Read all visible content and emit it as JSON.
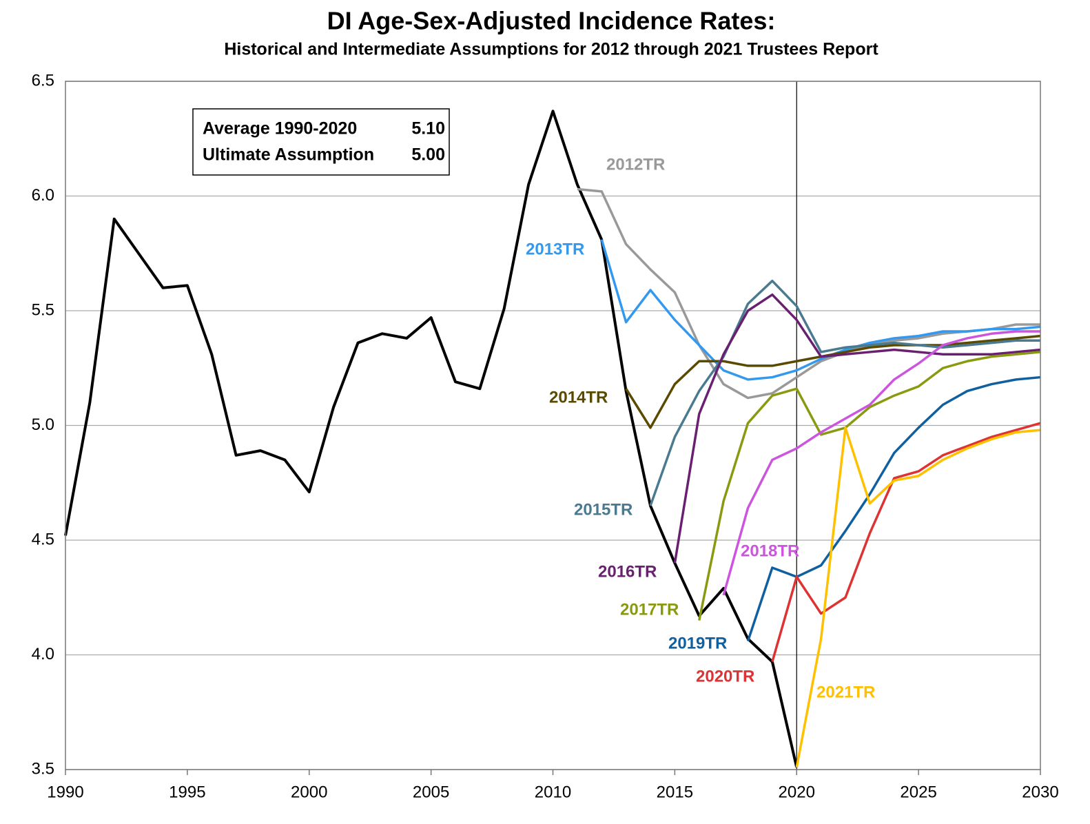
{
  "chart_data": {
    "type": "line",
    "title": "DI Age-Sex-Adjusted Incidence Rates:",
    "subtitle": "Historical and Intermediate Assumptions for 2012 through 2021 Trustees Report",
    "xlim": [
      1990,
      2030
    ],
    "xticks": [
      1990,
      1995,
      2000,
      2005,
      2010,
      2015,
      2020,
      2025,
      2030
    ],
    "ylim": [
      3.5,
      6.5
    ],
    "yticks": [
      {
        "value": 3.5,
        "label": "3.5"
      },
      {
        "value": 4.0,
        "label": "4.0"
      },
      {
        "value": 4.5,
        "label": "4.5"
      },
      {
        "value": 5.0,
        "label": "5.0"
      },
      {
        "value": 5.5,
        "label": "5.5"
      },
      {
        "value": 6.0,
        "label": "6.0"
      },
      {
        "value": 6.5,
        "label": "6.5"
      }
    ],
    "grid": true,
    "vline": 2020,
    "annotations": [
      {
        "text": "Average 1990-2020",
        "value": 5.1,
        "value_label": "5.10"
      },
      {
        "text": "Ultimate Assumption",
        "value": 5.0,
        "value_label": "5.00"
      }
    ],
    "series": [
      {
        "color": "#000000",
        "x": [
          1990,
          1991,
          1992,
          1993,
          1994,
          1995,
          1996,
          1997,
          1998,
          1999,
          2000,
          2001,
          2002,
          2003,
          2004,
          2005,
          2006,
          2007,
          2008,
          2009,
          2010,
          2011,
          2012,
          2013,
          2014,
          2015,
          2016,
          2017,
          2018,
          2019,
          2020
        ],
        "values": [
          4.52,
          5.1,
          5.9,
          5.75,
          5.6,
          5.61,
          5.31,
          4.87,
          4.89,
          4.85,
          4.71,
          5.08,
          5.36,
          5.4,
          5.38,
          5.47,
          5.19,
          5.16,
          5.51,
          6.05,
          6.37,
          6.05,
          5.81,
          5.15,
          4.65,
          4.4,
          4.17,
          4.29,
          4.07,
          3.97,
          3.51
        ]
      },
      {
        "name": "2012TR",
        "color": "#999999",
        "x": [
          2011,
          2012,
          2013,
          2014,
          2015,
          2016,
          2017,
          2018,
          2019,
          2020,
          2021,
          2022,
          2023,
          2024,
          2025,
          2026,
          2027,
          2028,
          2029,
          2030
        ],
        "values": [
          6.03,
          6.02,
          5.79,
          5.68,
          5.58,
          5.35,
          5.18,
          5.12,
          5.14,
          5.21,
          5.28,
          5.32,
          5.35,
          5.37,
          5.38,
          5.4,
          5.41,
          5.42,
          5.44,
          5.44
        ]
      },
      {
        "name": "2013TR",
        "color": "#3399ee",
        "x": [
          2012,
          2013,
          2014,
          2015,
          2016,
          2017,
          2018,
          2019,
          2020,
          2021,
          2022,
          2023,
          2024,
          2025,
          2026,
          2027,
          2028,
          2029,
          2030
        ],
        "values": [
          5.81,
          5.45,
          5.59,
          5.46,
          5.35,
          5.24,
          5.2,
          5.21,
          5.24,
          5.29,
          5.33,
          5.36,
          5.38,
          5.39,
          5.41,
          5.41,
          5.42,
          5.42,
          5.43
        ]
      },
      {
        "name": "2014TR",
        "color": "#5a4a00",
        "x": [
          2013,
          2014,
          2015,
          2016,
          2017,
          2018,
          2019,
          2020,
          2021,
          2022,
          2023,
          2024,
          2025,
          2026,
          2027,
          2028,
          2029,
          2030
        ],
        "values": [
          5.16,
          4.99,
          5.18,
          5.28,
          5.28,
          5.26,
          5.26,
          5.28,
          5.3,
          5.32,
          5.34,
          5.35,
          5.35,
          5.35,
          5.36,
          5.37,
          5.38,
          5.39
        ]
      },
      {
        "name": "2015TR",
        "color": "#4a7a90",
        "x": [
          2014,
          2015,
          2016,
          2017,
          2018,
          2019,
          2020,
          2021,
          2022,
          2023,
          2024,
          2025,
          2026,
          2027,
          2028,
          2029,
          2030
        ],
        "values": [
          4.65,
          4.95,
          5.15,
          5.3,
          5.53,
          5.63,
          5.52,
          5.32,
          5.34,
          5.35,
          5.36,
          5.35,
          5.34,
          5.35,
          5.36,
          5.37,
          5.37
        ]
      },
      {
        "name": "2016TR",
        "color": "#6a2070",
        "x": [
          2015,
          2016,
          2017,
          2018,
          2019,
          2020,
          2021,
          2022,
          2023,
          2024,
          2025,
          2026,
          2027,
          2028,
          2029,
          2030
        ],
        "values": [
          4.4,
          5.05,
          5.31,
          5.5,
          5.57,
          5.46,
          5.3,
          5.31,
          5.32,
          5.33,
          5.32,
          5.31,
          5.31,
          5.31,
          5.32,
          5.33
        ]
      },
      {
        "name": "2017TR",
        "color": "#8a9a10",
        "x": [
          2016,
          2017,
          2018,
          2019,
          2020,
          2021,
          2022,
          2023,
          2024,
          2025,
          2026,
          2027,
          2028,
          2029,
          2030
        ],
        "values": [
          4.15,
          4.67,
          5.01,
          5.13,
          5.16,
          4.96,
          4.99,
          5.08,
          5.13,
          5.17,
          5.25,
          5.28,
          5.3,
          5.31,
          5.32
        ]
      },
      {
        "name": "2018TR",
        "color": "#cc55dd",
        "x": [
          2017,
          2018,
          2019,
          2020,
          2021,
          2022,
          2023,
          2024,
          2025,
          2026,
          2027,
          2028,
          2029,
          2030
        ],
        "values": [
          4.26,
          4.64,
          4.85,
          4.9,
          4.97,
          5.03,
          5.09,
          5.2,
          5.27,
          5.35,
          5.38,
          5.4,
          5.41,
          5.41
        ]
      },
      {
        "name": "2019TR",
        "color": "#1060a0",
        "x": [
          2018,
          2019,
          2020,
          2021,
          2022,
          2023,
          2024,
          2025,
          2026,
          2027,
          2028,
          2029,
          2030
        ],
        "values": [
          4.06,
          4.38,
          4.34,
          4.39,
          4.54,
          4.7,
          4.88,
          4.99,
          5.09,
          5.15,
          5.18,
          5.2,
          5.21
        ]
      },
      {
        "name": "2020TR",
        "color": "#dd3333",
        "x": [
          2019,
          2020,
          2021,
          2022,
          2023,
          2024,
          2025,
          2026,
          2027,
          2028,
          2029,
          2030
        ],
        "values": [
          3.97,
          4.34,
          4.18,
          4.25,
          4.53,
          4.77,
          4.8,
          4.87,
          4.91,
          4.95,
          4.98,
          5.01
        ]
      },
      {
        "name": "2021TR",
        "color": "#ffc000",
        "x": [
          2020,
          2021,
          2022,
          2023,
          2024,
          2025,
          2026,
          2027,
          2028,
          2029,
          2030
        ],
        "values": [
          3.51,
          4.07,
          4.99,
          4.66,
          4.76,
          4.78,
          4.85,
          4.9,
          4.94,
          4.97,
          4.98
        ]
      }
    ]
  }
}
